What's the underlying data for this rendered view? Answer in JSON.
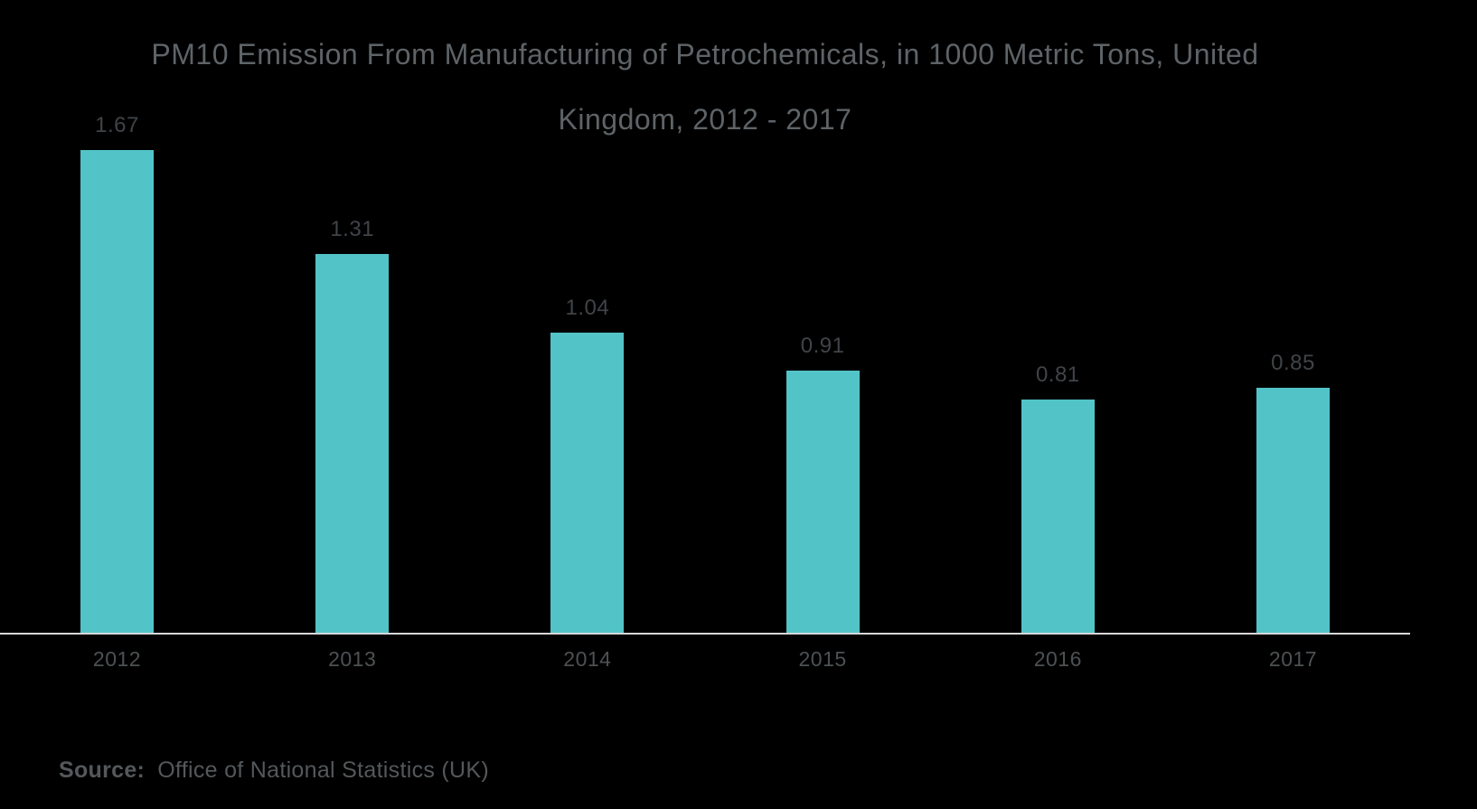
{
  "chart_data": {
    "type": "bar",
    "title": "PM10 Emission From Manufacturing of Petrochemicals, in 1000 Metric Tons, United Kingdom, 2012 - 2017",
    "title_lines": [
      "PM10 Emission From Manufacturing of Petrochemicals, in 1000 Metric Tons, United",
      "Kingdom, 2012 - 2017"
    ],
    "categories": [
      "2012",
      "2013",
      "2014",
      "2015",
      "2016",
      "2017"
    ],
    "values": [
      1.67,
      1.31,
      1.04,
      0.91,
      0.81,
      0.85
    ],
    "value_labels": [
      "1.67",
      "1.31",
      "1.04",
      "0.91",
      "0.81",
      "0.85"
    ],
    "xlabel": "",
    "ylabel": "",
    "ylim": [
      0,
      1.75
    ],
    "grid": false,
    "legend": false
  },
  "source": {
    "label": "Source:",
    "text": "Office of National Statistics (UK)"
  },
  "colors": {
    "background": "#000000",
    "bar": "#52C4C8",
    "title": "#5E6367",
    "value_label": "#404448",
    "axis_label": "#4D5154",
    "axis_line": "#D8D8D8",
    "source_text": "#54585B"
  }
}
